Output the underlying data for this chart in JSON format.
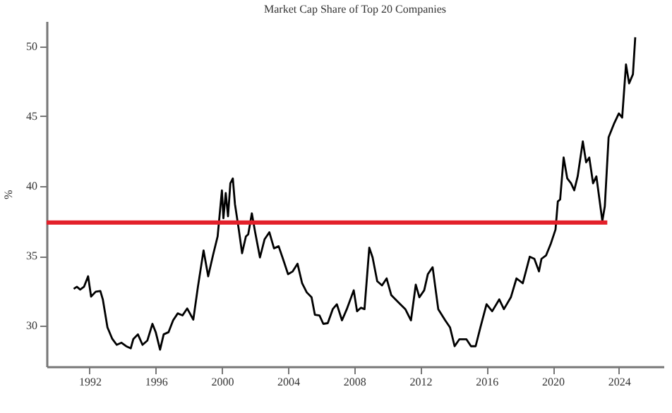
{
  "chart_data": {
    "type": "line",
    "title": "Market Cap Share of Top 20 Companies",
    "ylabel": "%",
    "xlim": [
      1989.4,
      2026.7
    ],
    "xticks": [
      1992,
      1996,
      2000,
      2004,
      2008,
      2012,
      2016,
      2020,
      2024
    ],
    "ylim": [
      27.1,
      51.8
    ],
    "yticks": [
      30,
      35,
      40,
      45,
      50
    ],
    "grid": false,
    "marker": "none",
    "line_style": "solid",
    "series": [
      {
        "color": "#000000",
        "x": [
          1991.04,
          1991.23,
          1991.43,
          1991.66,
          1991.91,
          1992.09,
          1992.37,
          1992.65,
          1992.8,
          1993.08,
          1993.36,
          1993.64,
          1993.93,
          1994.21,
          1994.49,
          1994.64,
          1994.92,
          1995.2,
          1995.49,
          1995.8,
          1996.0,
          1996.26,
          1996.48,
          1996.77,
          1997.05,
          1997.33,
          1997.62,
          1997.9,
          1998.27,
          1998.55,
          1998.89,
          1999.17,
          1999.46,
          1999.74,
          2000.0,
          2000.09,
          2000.23,
          2000.37,
          2000.51,
          2000.66,
          2000.79,
          2001.02,
          2001.22,
          2001.45,
          2001.59,
          2001.81,
          2002.01,
          2002.3,
          2002.58,
          2002.87,
          2003.15,
          2003.43,
          2003.72,
          2004.0,
          2004.28,
          2004.57,
          2004.85,
          2005.13,
          2005.42,
          2005.62,
          2005.9,
          2006.13,
          2006.4,
          2006.7,
          2006.95,
          2007.26,
          2007.55,
          2007.97,
          2008.17,
          2008.4,
          2008.62,
          2008.91,
          2009.11,
          2009.39,
          2009.68,
          2009.96,
          2010.24,
          2010.66,
          2011.09,
          2011.43,
          2011.72,
          2011.94,
          2012.23,
          2012.45,
          2012.74,
          2013.08,
          2013.5,
          2013.79,
          2014.07,
          2014.36,
          2014.78,
          2015.06,
          2015.34,
          2015.63,
          2016.0,
          2016.34,
          2016.77,
          2017.05,
          2017.47,
          2017.81,
          2018.19,
          2018.61,
          2018.89,
          2019.17,
          2019.32,
          2019.6,
          2019.89,
          2020.17,
          2020.31,
          2020.45,
          2020.66,
          2020.88,
          2021.11,
          2021.3,
          2021.51,
          2021.82,
          2022.02,
          2022.21,
          2022.44,
          2022.64,
          2023.0,
          2023.15,
          2023.38,
          2023.72,
          2024.0,
          2024.2,
          2024.43,
          2024.62,
          2024.85,
          2024.99
        ],
        "values": [
          32.65,
          32.8,
          32.6,
          32.8,
          33.55,
          32.1,
          32.45,
          32.5,
          31.9,
          29.9,
          29.1,
          28.65,
          28.8,
          28.55,
          28.4,
          29.05,
          29.4,
          28.65,
          28.95,
          30.15,
          29.55,
          28.3,
          29.4,
          29.55,
          30.4,
          30.9,
          30.75,
          31.25,
          30.45,
          32.8,
          35.4,
          33.55,
          35.05,
          36.4,
          39.7,
          37.7,
          39.5,
          37.85,
          40.2,
          40.55,
          38.7,
          36.9,
          35.2,
          36.4,
          36.55,
          38.05,
          36.7,
          34.9,
          36.2,
          36.7,
          35.55,
          35.7,
          34.7,
          33.7,
          33.9,
          34.45,
          33.05,
          32.4,
          32.05,
          30.8,
          30.75,
          30.15,
          30.2,
          31.2,
          31.55,
          30.4,
          31.2,
          32.55,
          31.05,
          31.3,
          31.2,
          35.6,
          34.9,
          33.2,
          32.9,
          33.4,
          32.2,
          31.7,
          31.2,
          30.4,
          32.95,
          32.05,
          32.55,
          33.7,
          34.2,
          31.2,
          30.4,
          29.9,
          28.55,
          29.05,
          29.05,
          28.55,
          28.55,
          29.9,
          31.55,
          31.05,
          31.9,
          31.2,
          32.05,
          33.4,
          33.05,
          34.95,
          34.8,
          33.9,
          34.8,
          35.05,
          35.9,
          36.9,
          38.9,
          39.05,
          42.05,
          40.55,
          40.2,
          39.7,
          40.7,
          43.2,
          41.7,
          42.05,
          40.2,
          40.7,
          37.5,
          38.55,
          43.5,
          44.5,
          45.2,
          44.9,
          48.7,
          47.35,
          48.0,
          50.65
        ]
      },
      {
        "color": "#e3202a",
        "x": [
          1989.4,
          2023.3
        ],
        "values": [
          37.4,
          37.4
        ]
      }
    ]
  }
}
